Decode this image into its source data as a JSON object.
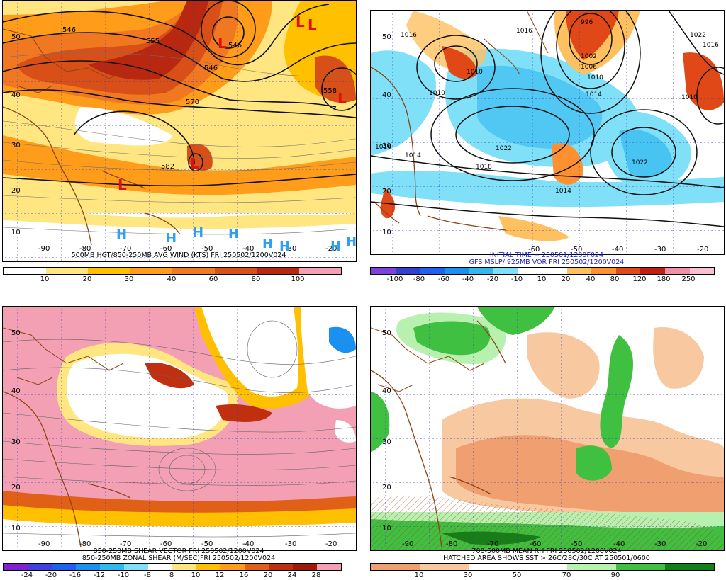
{
  "panels": [
    {
      "id": "tl",
      "caption_lines": [
        "500MB HGT/850-250MB AVG WIND (KTS) FRI 250502/1200V024"
      ],
      "caption_color": "#000000",
      "colorbar_labels": [
        "10",
        "20",
        "30",
        "40",
        "60",
        "80",
        "100"
      ],
      "colorbar_colors": [
        "#ffffff",
        "#ffe680",
        "#ffc000",
        "#ff9c1a",
        "#f07820",
        "#d85018",
        "#b82810",
        "#f4a0b4"
      ],
      "lat_labels": [
        "50",
        "40",
        "30",
        "20",
        "10"
      ],
      "lon_labels": [
        "-90",
        "-80",
        "-70",
        "-60",
        "-50",
        "-40",
        "-30",
        "-20"
      ],
      "contour_labels": [
        "546",
        "555",
        "546",
        "570",
        "558",
        "582",
        "546"
      ],
      "low_marks": [
        "L",
        "L",
        "L",
        "L",
        "L",
        "L"
      ],
      "high_marks": [
        "H",
        "H",
        "H",
        "H",
        "H",
        "H",
        "H",
        "H"
      ]
    },
    {
      "id": "tr",
      "caption_lines": [
        "INITIAL TIME = 250501/1200F024",
        "GFS MSLP/ 925MB VOR FRI 250502/1200V024"
      ],
      "caption_color": "#1a1acc",
      "colorbar_labels": [
        "-100",
        "-80",
        "-60",
        "-40",
        "-20",
        "-10",
        "10",
        "20",
        "40",
        "80",
        "120",
        "180",
        "250"
      ],
      "colorbar_colors": [
        "#8040e0",
        "#3040d0",
        "#2060f0",
        "#1a90f0",
        "#30b8f0",
        "#80e0f8",
        "#ffffff",
        "#ffffff",
        "#ffc060",
        "#ff9030",
        "#e04818",
        "#c02010",
        "#f090a8",
        "#f8c0d0"
      ],
      "lat_labels": [
        "50",
        "40",
        "30",
        "20",
        "10"
      ],
      "lon_labels": [
        "-60",
        "-50",
        "-40",
        "-30",
        "-20"
      ],
      "contour_labels": [
        "1016",
        "1016",
        "996",
        "1022",
        "1016",
        "1002",
        "1006",
        "1010",
        "1014",
        "1010",
        "1010",
        "1022",
        "1022",
        "1018",
        "1014",
        "1010",
        "1014",
        "1016"
      ]
    },
    {
      "id": "bl",
      "caption_lines": [
        "850-250MB SHEAR VECTOR FRI 250502/1200V024",
        "850-250MB ZONAL SHEAR (M/SEC)FRI 250502/1200V024"
      ],
      "caption_color": "#000000",
      "colorbar_labels": [
        "-24",
        "-20",
        "-16",
        "-12",
        "-10",
        "-8",
        "8",
        "10",
        "12",
        "16",
        "20",
        "24",
        "28"
      ],
      "colorbar_colors": [
        "#8020d0",
        "#4040e0",
        "#2060f0",
        "#1a90f0",
        "#30b8f0",
        "#80e0f8",
        "#ffffff",
        "#ffe680",
        "#ffc000",
        "#ff9c1a",
        "#e06018",
        "#c03010",
        "#a01808",
        "#f4a0b4"
      ],
      "lat_labels": [
        "50",
        "40",
        "30",
        "20",
        "10"
      ],
      "lon_labels": [
        "-90",
        "-80",
        "-70",
        "-60",
        "-50",
        "-40",
        "-30",
        "-20"
      ]
    },
    {
      "id": "br",
      "caption_lines": [
        "700-500MB MEAN RH FRI 250502/1200V024",
        "HATCHED AREA SHOWS SST > 26C/28C/30C AT 250501/0600"
      ],
      "caption_color": "#000000",
      "colorbar_labels": [
        "10",
        "30",
        "50",
        "70",
        "90"
      ],
      "colorbar_colors": [
        "#f0a070",
        "#f8c8a0",
        "#ffffff",
        "#ffffff",
        "#b8f0b0",
        "#40c040",
        "#108018"
      ],
      "lat_labels": [
        "50",
        "40",
        "30",
        "20",
        "10"
      ],
      "lon_labels": [
        "-90",
        "-80",
        "-70",
        "-60",
        "-50",
        "-40",
        "-30",
        "-20"
      ]
    }
  ]
}
